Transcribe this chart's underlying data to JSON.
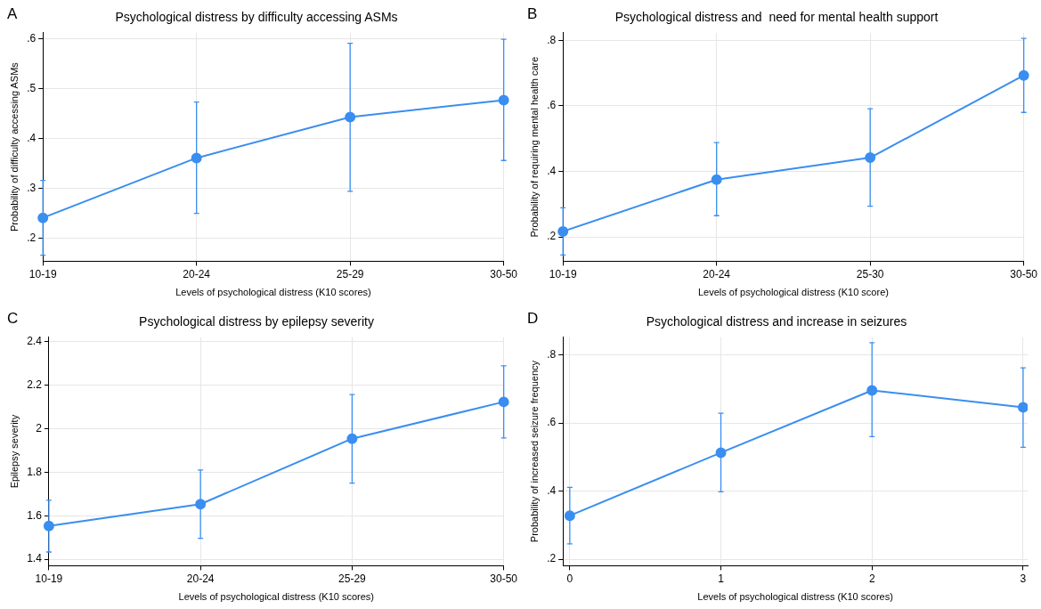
{
  "chart_data": [
    {
      "type": "line",
      "title": "Psychological distress by difficulty accessing ASMs",
      "xlabel": "Levels of psychological distress (K10 scores)",
      "ylabel": "Probability of difficulty accessing ASMs",
      "annotations": [
        "A"
      ],
      "categories": [
        "10-19",
        "20-24",
        "25-29",
        "30-50"
      ],
      "series": [
        {
          "color": "#3a8ef0",
          "values": [
            0.241,
            0.361,
            0.443,
            0.477
          ],
          "errors": [
            [
              0.166,
              0.316
            ],
            [
              0.25,
              0.473
            ],
            [
              0.294,
              0.591
            ],
            [
              0.356,
              0.599
            ]
          ]
        }
      ],
      "ylim": [
        0.154,
        0.612
      ],
      "yticks": [
        {
          "value": 0.2,
          "label": ".2"
        },
        {
          "value": 0.3,
          "label": ".3"
        },
        {
          "value": 0.4,
          "label": ".4"
        },
        {
          "value": 0.5,
          "label": ".5"
        },
        {
          "value": 0.6,
          "label": ".6"
        }
      ],
      "grid": true,
      "marker": "circle",
      "line_style": "solid"
    },
    {
      "type": "line",
      "title": "Psychological distress and  need for mental health support",
      "xlabel": "Levels of psychological distress (K10 score)",
      "ylabel": "Probability of requiring mental health care",
      "annotations": [
        "B"
      ],
      "categories": [
        "10-19",
        "20-24",
        "25-30",
        "30-50"
      ],
      "series": [
        {
          "color": "#3a8ef0",
          "values": [
            0.217,
            0.375,
            0.442,
            0.693
          ],
          "errors": [
            [
              0.145,
              0.289
            ],
            [
              0.265,
              0.488
            ],
            [
              0.294,
              0.591
            ],
            [
              0.58,
              0.806
            ]
          ]
        }
      ],
      "ylim": [
        0.126,
        0.823
      ],
      "yticks": [
        {
          "value": 0.2,
          "label": ".2"
        },
        {
          "value": 0.4,
          "label": ".4"
        },
        {
          "value": 0.6,
          "label": ".6"
        },
        {
          "value": 0.8,
          "label": ".8"
        }
      ],
      "grid": true,
      "marker": "circle",
      "line_style": "solid"
    },
    {
      "type": "line",
      "title": "Psychological distress by epilepsy severity",
      "xlabel": "Levels of psychological distress (K10 scores)",
      "ylabel": "Epilepsy severity",
      "annotations": [
        "C"
      ],
      "categories": [
        "10-19",
        "20-24",
        "25-29",
        "30-50"
      ],
      "series": [
        {
          "color": "#3a8ef0",
          "values": [
            1.553,
            1.653,
            1.954,
            2.123
          ],
          "errors": [
            [
              1.433,
              1.671
            ],
            [
              1.496,
              1.81
            ],
            [
              1.75,
              2.157
            ],
            [
              1.957,
              2.289
            ]
          ]
        }
      ],
      "ylim": [
        1.37,
        2.42
      ],
      "yticks": [
        1.4,
        1.6,
        1.8,
        2,
        2.2,
        2.4
      ],
      "grid": true,
      "marker": "circle",
      "line_style": "solid"
    },
    {
      "type": "line",
      "title": "Psychological distress and increase in seizures",
      "xlabel": "Levels of psychological distress (K10 scores)",
      "ylabel": "Probability of increased seizure frequency",
      "annotations": [
        "D"
      ],
      "x": [
        0,
        1,
        2,
        3
      ],
      "series": [
        {
          "color": "#3a8ef0",
          "values": [
            0.328,
            0.513,
            0.696,
            0.646
          ],
          "errors": [
            [
              0.245,
              0.411
            ],
            [
              0.398,
              0.629
            ],
            [
              0.56,
              0.836
            ],
            [
              0.529,
              0.762
            ]
          ]
        }
      ],
      "xlim": [
        -0.045,
        3.03
      ],
      "xticks": [
        0,
        1,
        2,
        3
      ],
      "ylim": [
        0.181,
        0.852
      ],
      "yticks": [
        {
          "value": 0.2,
          "label": ".2"
        },
        {
          "value": 0.4,
          "label": ".4"
        },
        {
          "value": 0.6,
          "label": ".6"
        },
        {
          "value": 0.8,
          "label": ".8"
        }
      ],
      "grid": true,
      "marker": "circle",
      "line_style": "solid"
    }
  ]
}
